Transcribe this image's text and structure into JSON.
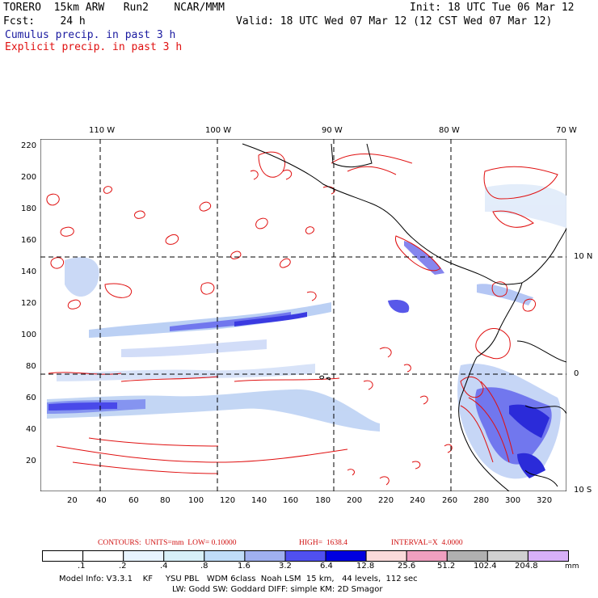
{
  "header": {
    "model": "TORERO  15km ARW   Run2    NCAR/MMM",
    "init": "Init: 18 UTC Tue 06 Mar 12",
    "fcst": "Fcst:    24 h",
    "valid": "Valid: 18 UTC Wed 07 Mar 12 (12 CST Wed 07 Mar 12)",
    "field1": "Cumulus precip. in past 3 h",
    "field2": "Explicit precip. in past 3 h"
  },
  "axes": {
    "top_lon_labels": [
      "110 W",
      "100 W",
      "90 W",
      "80 W",
      "70 W"
    ],
    "right_lat_labels": [
      "10 N",
      "0",
      "10 S"
    ],
    "left_ticks": [
      "220",
      "200",
      "180",
      "160",
      "140",
      "120",
      "100",
      "80",
      "60",
      "40",
      "20"
    ],
    "bottom_ticks": [
      "20",
      "40",
      "60",
      "80",
      "100",
      "120",
      "140",
      "160",
      "180",
      "200",
      "220",
      "240",
      "260",
      "280",
      "300",
      "320"
    ]
  },
  "contours_line": {
    "label": "CONTOURS:  UNITS=mm  LOW= 0.10000",
    "high": "HIGH=  1638.4",
    "interval": "INTERVAL=X  4.0000"
  },
  "legend": {
    "values": [
      ".1",
      ".2",
      ".4",
      ".8",
      "1.6",
      "3.2",
      "6.4",
      "12.8",
      "25.6",
      "51.2",
      "102.4",
      "204.8"
    ],
    "unit": "mm",
    "colors": [
      "#ffffff",
      "#ffffff",
      "#e8f4ff",
      "#d8f0f8",
      "#c0dcf8",
      "#a0b0f0",
      "#5050f0",
      "#0000e0",
      "#fadada",
      "#f0a0c0",
      "#b0b0b0",
      "#d0d0d0",
      "#d8b0f8"
    ]
  },
  "footer": {
    "line1": "Model Info: V3.3.1    KF     YSU PBL   WDM 6class  Noah LSM  15 km,   44 levels,  112 sec",
    "line2": "LW: Godd SW: Goddard DIFF: simple KM: 2D Smagor"
  }
}
